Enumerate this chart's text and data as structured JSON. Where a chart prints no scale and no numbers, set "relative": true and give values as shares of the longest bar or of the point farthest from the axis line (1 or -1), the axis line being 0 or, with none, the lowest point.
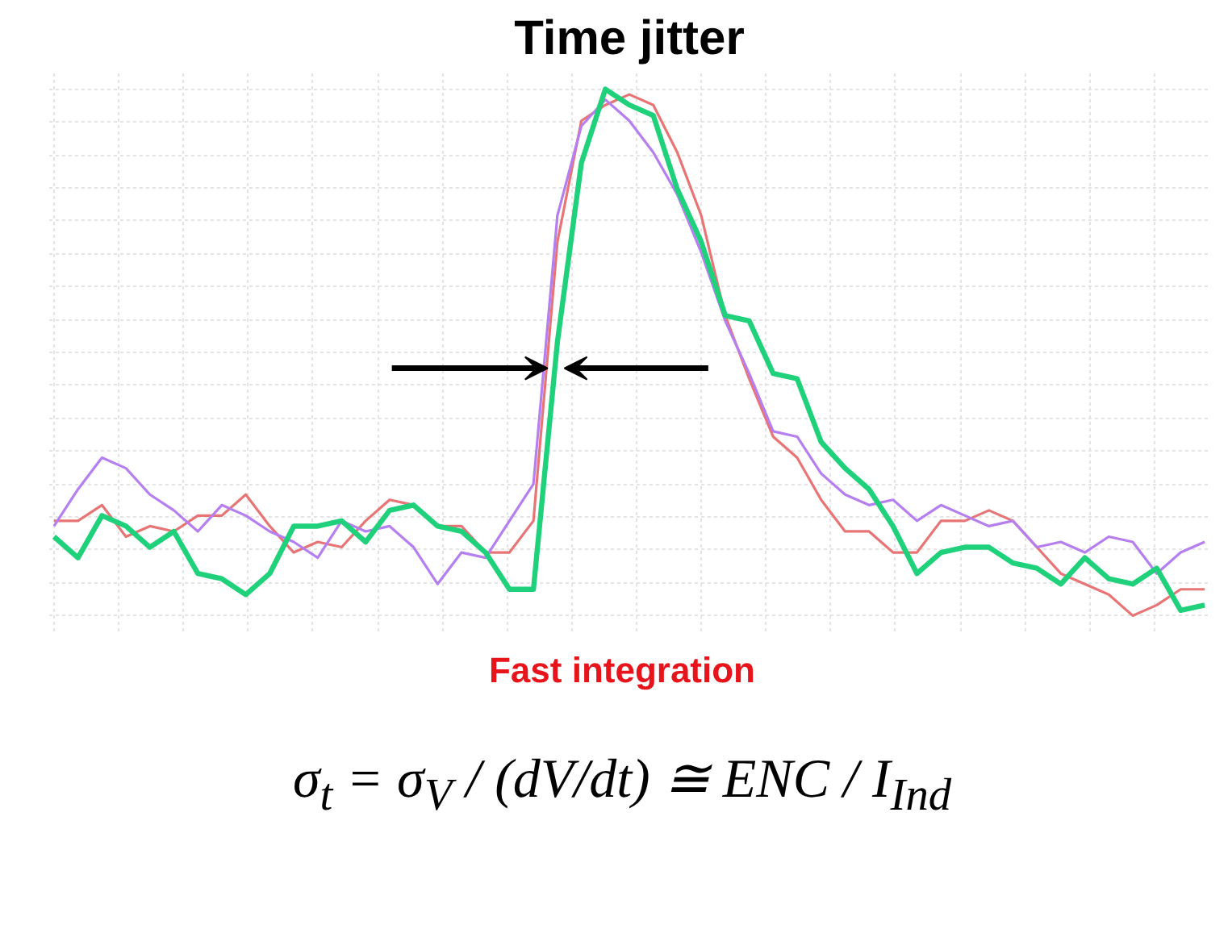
{
  "chart_data": {
    "type": "line",
    "title": "Time jitter",
    "relative": true,
    "grid": true,
    "marker": "none",
    "line_style": "solid",
    "categories": [
      null,
      null,
      null,
      null,
      null,
      null,
      null,
      null,
      null,
      null,
      null,
      null,
      null,
      null,
      null,
      null,
      null,
      null,
      null,
      null,
      null,
      null,
      null,
      null,
      null,
      null,
      null,
      null,
      null,
      null,
      null,
      null,
      null,
      null,
      null,
      null,
      null,
      null,
      null,
      null,
      null,
      null,
      null,
      null,
      null,
      null,
      null,
      null,
      null
    ],
    "series": [
      {
        "color": "#e87575",
        "values": [
          0.18,
          0.18,
          0.21,
          0.15,
          0.17,
          0.16,
          0.19,
          0.19,
          0.23,
          0.17,
          0.12,
          0.14,
          0.13,
          0.18,
          0.22,
          0.21,
          0.17,
          0.17,
          0.12,
          0.12,
          0.18,
          0.71,
          0.94,
          0.97,
          0.99,
          0.97,
          0.88,
          0.76,
          0.57,
          0.45,
          0.34,
          0.3,
          0.22,
          0.16,
          0.16,
          0.12,
          0.12,
          0.18,
          0.18,
          0.2,
          0.18,
          0.13,
          0.08,
          0.06,
          0.04,
          0,
          0.02,
          0.05,
          0.05
        ]
      },
      {
        "color": "#b57ff0",
        "values": [
          0.17,
          0.24,
          0.3,
          0.28,
          0.23,
          0.2,
          0.16,
          0.21,
          0.19,
          0.16,
          0.14,
          0.11,
          0.18,
          0.16,
          0.17,
          0.13,
          0.06,
          0.12,
          0.11,
          0.18,
          0.25,
          0.76,
          0.93,
          0.98,
          0.94,
          0.88,
          0.8,
          0.69,
          0.56,
          0.46,
          0.35,
          0.34,
          0.27,
          0.23,
          0.21,
          0.22,
          0.18,
          0.21,
          0.19,
          0.17,
          0.18,
          0.13,
          0.14,
          0.12,
          0.15,
          0.14,
          0.08,
          0.12,
          0.14
        ]
      },
      {
        "color": "#1fd17a",
        "values": [
          0.15,
          0.11,
          0.19,
          0.17,
          0.13,
          0.16,
          0.08,
          0.07,
          0.04,
          0.08,
          0.17,
          0.17,
          0.18,
          0.14,
          0.2,
          0.21,
          0.17,
          0.16,
          0.12,
          0.05,
          0.05,
          0.52,
          0.86,
          1.0,
          0.97,
          0.95,
          0.81,
          0.71,
          0.57,
          0.56,
          0.46,
          0.45,
          0.33,
          0.28,
          0.24,
          0.17,
          0.08,
          0.12,
          0.13,
          0.13,
          0.1,
          0.09,
          0.06,
          0.11,
          0.07,
          0.06,
          0.09,
          0.01,
          0.02
        ]
      }
    ],
    "annotations": [
      "Fast integration",
      "σ$_{t}$ = σ$_{V}$ / (dV/dt) ≅ ENC / I$_{Ind}$"
    ]
  }
}
